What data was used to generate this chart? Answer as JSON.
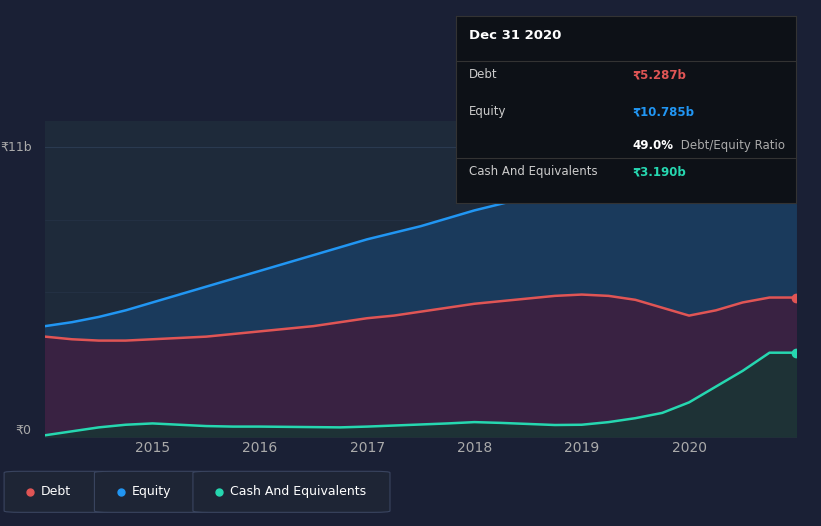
{
  "background_color": "#1a2035",
  "plot_bg": "#1e2a3a",
  "ylim": [
    0,
    12
  ],
  "ylabel_top": "₹11b",
  "ylabel_bottom": "₹0",
  "x_years": [
    2014.0,
    2014.25,
    2014.5,
    2014.75,
    2015.0,
    2015.25,
    2015.5,
    2015.75,
    2016.0,
    2016.25,
    2016.5,
    2016.75,
    2017.0,
    2017.25,
    2017.5,
    2017.75,
    2018.0,
    2018.25,
    2018.5,
    2018.75,
    2019.0,
    2019.25,
    2019.5,
    2019.75,
    2020.0,
    2020.25,
    2020.5,
    2020.75,
    2021.0
  ],
  "equity": [
    4.2,
    4.35,
    4.55,
    4.8,
    5.1,
    5.4,
    5.7,
    6.0,
    6.3,
    6.6,
    6.9,
    7.2,
    7.5,
    7.75,
    8.0,
    8.3,
    8.6,
    8.85,
    9.1,
    9.2,
    9.3,
    9.4,
    9.5,
    9.6,
    9.8,
    10.2,
    10.6,
    10.785,
    10.785
  ],
  "debt": [
    3.8,
    3.7,
    3.65,
    3.65,
    3.7,
    3.75,
    3.8,
    3.9,
    4.0,
    4.1,
    4.2,
    4.35,
    4.5,
    4.6,
    4.75,
    4.9,
    5.05,
    5.15,
    5.25,
    5.35,
    5.4,
    5.35,
    5.2,
    4.9,
    4.6,
    4.8,
    5.1,
    5.287,
    5.287
  ],
  "cash": [
    0.05,
    0.2,
    0.35,
    0.45,
    0.5,
    0.45,
    0.4,
    0.38,
    0.38,
    0.37,
    0.36,
    0.35,
    0.38,
    0.42,
    0.46,
    0.5,
    0.55,
    0.52,
    0.48,
    0.44,
    0.45,
    0.55,
    0.7,
    0.9,
    1.3,
    1.9,
    2.5,
    3.19,
    3.19
  ],
  "equity_color": "#2196f3",
  "equity_fill": "#1a3a5c",
  "debt_color": "#e05555",
  "debt_fill": "#3d2040",
  "cash_color": "#26d7b0",
  "cash_fill": "#1a3535",
  "tick_color": "#aaaaaa",
  "grid_color": "#2a3a50",
  "legend_bg": "#1e2535",
  "legend_border": "#3a4560",
  "tooltip_bg": "#0d1117",
  "tooltip_border": "#333333",
  "x_ticks": [
    2015,
    2016,
    2017,
    2018,
    2019,
    2020
  ],
  "x_tick_labels": [
    "2015",
    "2016",
    "2017",
    "2018",
    "2019",
    "2020"
  ],
  "debt_label": "Debt",
  "equity_label": "Equity",
  "cash_label": "Cash And Equivalents",
  "tooltip_title": "Dec 31 2020",
  "debt_value": "₹5.287b",
  "equity_value": "₹10.785b",
  "ratio_pct": "49.0%",
  "ratio_text": " Debt/Equity Ratio",
  "cash_value": "₹3.190b"
}
